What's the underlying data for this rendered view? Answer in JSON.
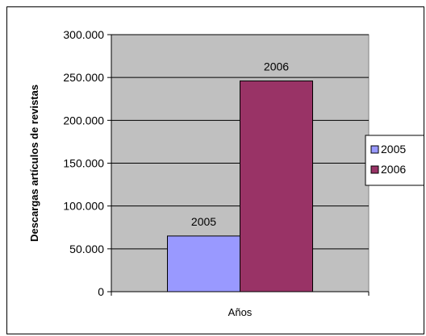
{
  "chart_data": {
    "type": "bar",
    "title": "",
    "xlabel": "Años",
    "ylabel": "Descargas artículos de revistas",
    "ylim": [
      0,
      300000
    ],
    "y_tick_values": [
      0,
      50000,
      100000,
      150000,
      200000,
      250000,
      300000
    ],
    "y_tick_labels": [
      "0",
      "50.000",
      "100.000",
      "150.000",
      "200.000",
      "250.000",
      "300.000"
    ],
    "categories": [
      "Años"
    ],
    "series": [
      {
        "name": "2005",
        "values": [
          65000
        ],
        "label": "2005",
        "color": "#9999ff"
      },
      {
        "name": "2006",
        "values": [
          246000
        ],
        "label": "2006",
        "color": "#993366"
      }
    ],
    "legend": {
      "position": "right",
      "entries": [
        "2005",
        "2006"
      ]
    },
    "plot_background": "#c0c0c0",
    "grid": true
  }
}
